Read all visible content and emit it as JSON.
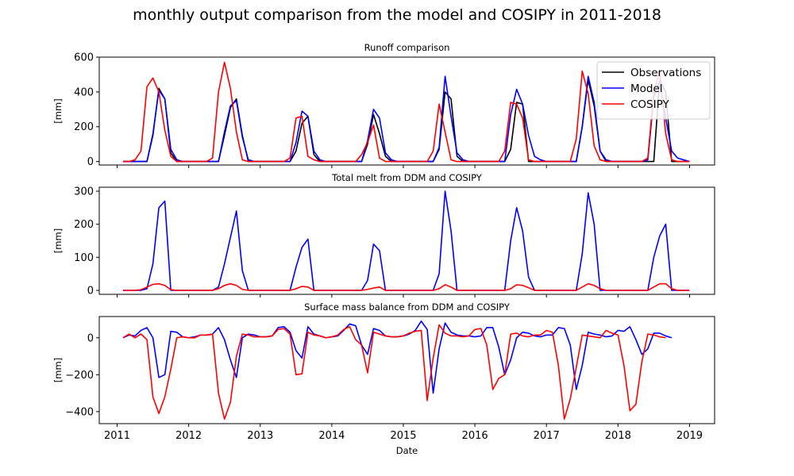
{
  "figure": {
    "suptitle": "monthly output comparison from the model and COSIPY in 2011-2018"
  },
  "colors": {
    "observations": "#000000",
    "model": "#0000ff",
    "cosipy": "#ff0000"
  },
  "chart_data": [
    {
      "type": "line",
      "title": "Runoff comparison",
      "xlabel": "",
      "ylabel": "[mm]",
      "ylim": [
        -20,
        600
      ],
      "yticks": [
        0,
        200,
        400,
        600
      ],
      "legend": {
        "placement": "top-right",
        "entries": [
          "Observations",
          "Model",
          "COSIPY"
        ]
      },
      "x_start": "2011-02",
      "x_step": "1 month",
      "xlim": [
        2010.75,
        2019.35
      ],
      "series": [
        {
          "name": "Observations",
          "color": "#000000",
          "values": [
            0,
            0,
            0,
            0,
            0,
            150,
            420,
            360,
            50,
            0,
            0,
            0,
            0,
            0,
            0,
            0,
            0,
            150,
            310,
            360,
            150,
            0,
            0,
            0,
            0,
            0,
            0,
            0,
            0,
            60,
            220,
            260,
            40,
            0,
            0,
            0,
            0,
            0,
            0,
            0,
            0,
            100,
            270,
            160,
            30,
            0,
            0,
            0,
            0,
            0,
            0,
            0,
            0,
            70,
            400,
            360,
            30,
            0,
            0,
            0,
            0,
            0,
            0,
            0,
            0,
            70,
            340,
            330,
            0,
            0,
            0,
            0,
            0,
            0,
            0,
            0,
            0,
            200,
            470,
            320,
            60,
            0,
            0,
            0,
            0,
            0,
            0,
            0,
            0,
            0,
            470,
            400,
            0,
            0,
            0,
            0
          ]
        },
        {
          "name": "Model",
          "color": "#0000ff",
          "values": [
            0,
            0,
            0,
            0,
            0,
            160,
            410,
            360,
            70,
            10,
            0,
            0,
            0,
            0,
            0,
            0,
            0,
            170,
            320,
            350,
            140,
            10,
            0,
            0,
            0,
            0,
            0,
            0,
            0,
            110,
            290,
            260,
            60,
            10,
            0,
            0,
            0,
            0,
            0,
            0,
            0,
            120,
            300,
            250,
            50,
            10,
            0,
            0,
            0,
            0,
            0,
            0,
            0,
            80,
            490,
            260,
            50,
            10,
            0,
            0,
            0,
            0,
            0,
            0,
            0,
            270,
            415,
            330,
            150,
            30,
            10,
            0,
            0,
            0,
            0,
            0,
            0,
            200,
            490,
            340,
            60,
            10,
            0,
            0,
            0,
            0,
            0,
            0,
            10,
            370,
            460,
            250,
            60,
            20,
            10,
            0
          ]
        },
        {
          "name": "COSIPY",
          "color": "#ff0000",
          "values": [
            0,
            0,
            10,
            60,
            430,
            480,
            400,
            180,
            30,
            0,
            0,
            0,
            0,
            0,
            0,
            20,
            400,
            570,
            420,
            170,
            10,
            0,
            0,
            0,
            0,
            0,
            0,
            0,
            20,
            250,
            260,
            30,
            10,
            0,
            0,
            0,
            0,
            0,
            0,
            0,
            40,
            110,
            210,
            20,
            0,
            0,
            0,
            0,
            0,
            0,
            0,
            0,
            60,
            330,
            170,
            10,
            0,
            0,
            0,
            0,
            0,
            0,
            0,
            0,
            60,
            340,
            330,
            250,
            10,
            0,
            0,
            0,
            0,
            0,
            0,
            0,
            130,
            520,
            390,
            90,
            10,
            0,
            0,
            0,
            0,
            0,
            0,
            0,
            20,
            400,
            520,
            160,
            10,
            0,
            0,
            0
          ]
        }
      ]
    },
    {
      "type": "line",
      "title": "Total melt from DDM and COSIPY",
      "xlabel": "",
      "ylabel": "[mm]",
      "ylim": [
        -12,
        312
      ],
      "yticks": [
        0,
        100,
        200,
        300
      ],
      "x_start": "2011-02",
      "x_step": "1 month",
      "xlim": [
        2010.75,
        2019.35
      ],
      "series": [
        {
          "color": "#0000ff",
          "values": [
            0,
            0,
            0,
            0,
            5,
            80,
            250,
            270,
            0,
            0,
            0,
            0,
            0,
            0,
            0,
            0,
            10,
            80,
            160,
            240,
            60,
            0,
            0,
            0,
            0,
            0,
            0,
            0,
            0,
            70,
            130,
            155,
            0,
            0,
            0,
            0,
            0,
            0,
            0,
            0,
            0,
            30,
            140,
            120,
            0,
            0,
            0,
            0,
            0,
            0,
            0,
            0,
            0,
            50,
            300,
            180,
            0,
            0,
            0,
            0,
            0,
            0,
            0,
            0,
            0,
            150,
            250,
            180,
            40,
            0,
            0,
            0,
            0,
            0,
            0,
            0,
            0,
            110,
            295,
            200,
            0,
            0,
            0,
            0,
            0,
            0,
            0,
            0,
            0,
            100,
            165,
            200,
            0,
            0,
            0,
            0
          ]
        },
        {
          "color": "#ff0000",
          "values": [
            0,
            0,
            0,
            2,
            10,
            18,
            20,
            15,
            2,
            0,
            0,
            0,
            0,
            0,
            0,
            0,
            5,
            15,
            20,
            15,
            3,
            0,
            0,
            0,
            0,
            0,
            0,
            0,
            0,
            5,
            12,
            10,
            0,
            0,
            0,
            0,
            0,
            0,
            0,
            0,
            0,
            3,
            7,
            10,
            0,
            0,
            0,
            0,
            0,
            0,
            0,
            0,
            0,
            5,
            17,
            10,
            0,
            0,
            0,
            0,
            0,
            0,
            0,
            0,
            0,
            5,
            17,
            15,
            8,
            0,
            0,
            0,
            0,
            0,
            0,
            0,
            0,
            10,
            20,
            15,
            5,
            0,
            0,
            0,
            0,
            0,
            0,
            0,
            0,
            10,
            20,
            20,
            5,
            0,
            0,
            0
          ]
        }
      ]
    },
    {
      "type": "line",
      "title": "Surface mass balance from DDM and COSIPY",
      "xlabel": "Date",
      "ylabel": "[mm]",
      "ylim": [
        -465,
        115
      ],
      "yticks": [
        -400,
        -200,
        0
      ],
      "xticks": [
        2011,
        2012,
        2013,
        2014,
        2015,
        2016,
        2017,
        2018,
        2019
      ],
      "x_start": "2011-02",
      "x_step": "1 month",
      "xlim": [
        2010.75,
        2019.35
      ],
      "series": [
        {
          "color": "#0000ff",
          "values": [
            0,
            15,
            10,
            40,
            55,
            0,
            -215,
            -200,
            35,
            30,
            5,
            0,
            5,
            15,
            15,
            20,
            55,
            -10,
            -120,
            -215,
            0,
            20,
            15,
            5,
            5,
            10,
            55,
            60,
            30,
            -70,
            -110,
            60,
            20,
            10,
            0,
            5,
            10,
            40,
            75,
            65,
            -40,
            -90,
            50,
            40,
            10,
            5,
            5,
            10,
            20,
            40,
            90,
            45,
            -300,
            -60,
            80,
            30,
            15,
            10,
            10,
            5,
            10,
            55,
            55,
            -50,
            -200,
            -120,
            0,
            30,
            25,
            10,
            5,
            15,
            15,
            55,
            50,
            -40,
            -280,
            -150,
            30,
            20,
            15,
            5,
            10,
            40,
            35,
            60,
            -10,
            -90,
            -60,
            25,
            25,
            10,
            0
          ]
        },
        {
          "color": "#ff0000",
          "values": [
            0,
            20,
            0,
            20,
            -10,
            -320,
            -410,
            -320,
            -170,
            0,
            5,
            0,
            0,
            15,
            15,
            20,
            -300,
            -440,
            -350,
            -100,
            20,
            15,
            5,
            5,
            5,
            10,
            45,
            50,
            20,
            -200,
            -195,
            30,
            15,
            10,
            0,
            5,
            15,
            45,
            60,
            -10,
            -40,
            -190,
            30,
            20,
            10,
            5,
            5,
            10,
            25,
            35,
            40,
            -340,
            -110,
            70,
            25,
            10,
            10,
            5,
            10,
            45,
            50,
            -40,
            -280,
            -220,
            -200,
            20,
            25,
            10,
            5,
            15,
            15,
            40,
            30,
            -150,
            -440,
            -330,
            -160,
            15,
            10,
            5,
            0,
            40,
            25,
            15,
            -150,
            -395,
            -360,
            -130,
            20,
            15,
            5,
            0
          ]
        }
      ]
    }
  ]
}
